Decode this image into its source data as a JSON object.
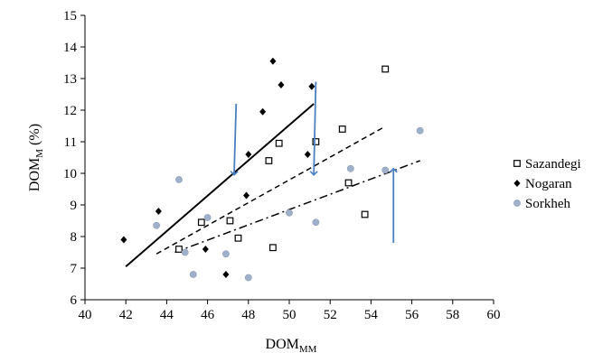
{
  "chart_data": {
    "type": "scatter",
    "xlabel": {
      "main": "DOM",
      "sub": "MM"
    },
    "ylabel": {
      "main": "DOM",
      "sub": "M",
      "suffix": " (%)"
    },
    "xlim": [
      40,
      60
    ],
    "ylim": [
      6,
      15
    ],
    "xticks": [
      40,
      42,
      44,
      46,
      48,
      50,
      52,
      54,
      56,
      58,
      60
    ],
    "yticks": [
      6,
      7,
      8,
      9,
      10,
      11,
      12,
      13,
      14,
      15
    ],
    "grid": false,
    "legend_position": "right",
    "series": [
      {
        "name": "Sazandegi",
        "marker": "open-square",
        "color": "#000000",
        "points": [
          [
            44.6,
            7.6
          ],
          [
            45.7,
            8.45
          ],
          [
            47.1,
            8.5
          ],
          [
            47.5,
            7.95
          ],
          [
            49.0,
            10.4
          ],
          [
            49.2,
            7.65
          ],
          [
            49.5,
            10.95
          ],
          [
            51.3,
            11.0
          ],
          [
            52.6,
            11.4
          ],
          [
            52.9,
            9.7
          ],
          [
            53.7,
            8.7
          ],
          [
            54.7,
            13.3
          ]
        ],
        "trendline": {
          "x": [
            42.0,
            51.2
          ],
          "y": [
            7.05,
            12.2
          ],
          "style": "solid"
        }
      },
      {
        "name": "Nogaran",
        "marker": "filled-diamond",
        "color": "#000000",
        "points": [
          [
            41.9,
            7.9
          ],
          [
            43.6,
            8.8
          ],
          [
            45.9,
            7.6
          ],
          [
            46.9,
            6.8
          ],
          [
            47.9,
            9.3
          ],
          [
            48.0,
            10.6
          ],
          [
            48.7,
            11.95
          ],
          [
            49.2,
            13.55
          ],
          [
            49.6,
            12.8
          ],
          [
            50.9,
            10.6
          ],
          [
            51.1,
            12.75
          ]
        ],
        "trendline": {
          "x": [
            43.5,
            54.6
          ],
          "y": [
            7.45,
            11.45
          ],
          "style": "dashed"
        }
      },
      {
        "name": "Sorkheh",
        "marker": "circle",
        "color": "#9fb0cb",
        "points": [
          [
            43.5,
            8.35
          ],
          [
            44.6,
            9.8
          ],
          [
            44.9,
            7.5
          ],
          [
            45.3,
            6.8
          ],
          [
            46.0,
            8.6
          ],
          [
            46.9,
            7.45
          ],
          [
            48.0,
            6.7
          ],
          [
            50.0,
            8.75
          ],
          [
            51.3,
            8.45
          ],
          [
            53.0,
            10.15
          ],
          [
            54.7,
            10.1
          ],
          [
            56.4,
            11.35
          ]
        ],
        "trendline": {
          "x": [
            44.4,
            56.4
          ],
          "y": [
            7.5,
            10.4
          ],
          "style": "dash-dot"
        }
      }
    ],
    "annotations": [
      {
        "kind": "arrow",
        "direction": "down",
        "color": "#4a7fc1",
        "from": [
          47.4,
          12.2
        ],
        "to": [
          47.3,
          9.95
        ]
      },
      {
        "kind": "arrow",
        "direction": "down",
        "color": "#4a7fc1",
        "from": [
          51.3,
          12.9
        ],
        "to": [
          51.2,
          9.95
        ]
      },
      {
        "kind": "arrow",
        "direction": "up",
        "color": "#4a7fc1",
        "from": [
          55.1,
          7.8
        ],
        "to": [
          55.1,
          10.15
        ]
      }
    ]
  }
}
